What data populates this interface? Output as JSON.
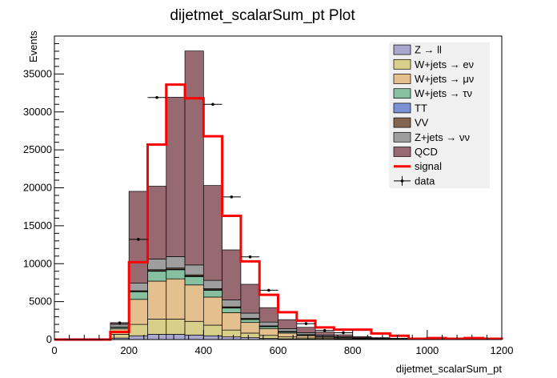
{
  "chart_data": {
    "type": "bar",
    "stacked": true,
    "title": "dijetmet_scalarSum_pt Plot",
    "xlabel": "dijetmet_scalarSum_pt",
    "ylabel": "Events",
    "xlim": [
      0,
      1200
    ],
    "ylim": [
      0,
      40000
    ],
    "x_ticks": [
      0,
      200,
      400,
      600,
      800,
      1000,
      1200
    ],
    "x_tick_labels": [
      "0",
      "200",
      "400",
      "600",
      "800",
      "1000",
      "1200"
    ],
    "y_ticks": [
      0,
      5000,
      10000,
      15000,
      20000,
      25000,
      30000,
      35000
    ],
    "y_tick_labels": [
      "0",
      "5000",
      "10000",
      "15000",
      "20000",
      "25000",
      "30000",
      "35000"
    ],
    "grid": false,
    "legend_position": "top-right",
    "bin_edges": [
      0,
      50,
      100,
      150,
      200,
      250,
      300,
      350,
      400,
      450,
      500,
      550,
      600,
      650,
      700,
      750,
      800,
      850,
      900,
      950,
      1000,
      1050,
      1100,
      1150,
      1200
    ],
    "series": [
      {
        "name": "Z → ll",
        "kind": "stack",
        "color": "#a9a7cd",
        "values": [
          0,
          0,
          0,
          200,
          500,
          700,
          700,
          600,
          500,
          350,
          250,
          150,
          100,
          60,
          40,
          25,
          15,
          10,
          6,
          4,
          3,
          2,
          1,
          0
        ]
      },
      {
        "name": "W+jets → eν",
        "kind": "stack",
        "color": "#d8d08a",
        "values": [
          0,
          0,
          0,
          500,
          1500,
          2000,
          2000,
          1800,
          1400,
          900,
          600,
          400,
          250,
          150,
          100,
          60,
          40,
          25,
          15,
          10,
          6,
          4,
          3,
          0
        ]
      },
      {
        "name": "W+jets → μν",
        "kind": "stack",
        "color": "#e3c08e",
        "values": [
          0,
          0,
          0,
          700,
          3300,
          5000,
          5300,
          4800,
          3700,
          2300,
          1400,
          900,
          500,
          300,
          180,
          110,
          70,
          40,
          25,
          16,
          10,
          6,
          4,
          0
        ]
      },
      {
        "name": "W+jets → τν",
        "kind": "stack",
        "color": "#86c0a0",
        "values": [
          0,
          0,
          0,
          200,
          1000,
          1300,
          1200,
          1100,
          900,
          600,
          400,
          250,
          150,
          90,
          55,
          35,
          22,
          14,
          9,
          6,
          4,
          2,
          1,
          0
        ]
      },
      {
        "name": "TT",
        "kind": "stack",
        "color": "#7b93d6",
        "values": [
          0,
          0,
          0,
          0,
          30,
          60,
          80,
          80,
          70,
          60,
          45,
          35,
          25,
          18,
          12,
          8,
          5,
          4,
          3,
          2,
          1,
          1,
          0,
          0
        ]
      },
      {
        "name": "VV",
        "kind": "stack",
        "color": "#84654f",
        "values": [
          0,
          0,
          0,
          50,
          100,
          150,
          150,
          150,
          130,
          110,
          90,
          70,
          50,
          40,
          30,
          20,
          15,
          10,
          8,
          6,
          4,
          3,
          2,
          1
        ]
      },
      {
        "name": "Z+jets → νν",
        "kind": "stack",
        "color": "#9e9e9e",
        "values": [
          0,
          0,
          0,
          350,
          1000,
          1400,
          1500,
          1300,
          1100,
          900,
          700,
          500,
          350,
          250,
          180,
          120,
          80,
          55,
          38,
          26,
          18,
          12,
          8,
          4
        ]
      },
      {
        "name": "QCD",
        "kind": "stack",
        "color": "#976a71",
        "values": [
          0,
          0,
          0,
          200,
          12100,
          9600,
          21000,
          28200,
          12500,
          6600,
          3800,
          1900,
          1200,
          700,
          400,
          250,
          150,
          90,
          60,
          40,
          25,
          15,
          10,
          5
        ]
      },
      {
        "name": "signal",
        "kind": "line",
        "color": "#ff0000",
        "values": [
          0,
          0,
          0,
          1000,
          10200,
          25700,
          33600,
          31800,
          26800,
          16300,
          10300,
          5900,
          3600,
          2500,
          1600,
          1300,
          1300,
          800,
          500,
          100,
          200,
          100,
          200,
          100
        ]
      },
      {
        "name": "data",
        "kind": "points",
        "color": "#000000",
        "values": [
          0,
          0,
          0,
          2200,
          13200,
          31900,
          0,
          0,
          31000,
          18800,
          10900,
          6500,
          0,
          2100,
          1200,
          900,
          0,
          0,
          0,
          0,
          0,
          0,
          0,
          0
        ]
      }
    ]
  }
}
